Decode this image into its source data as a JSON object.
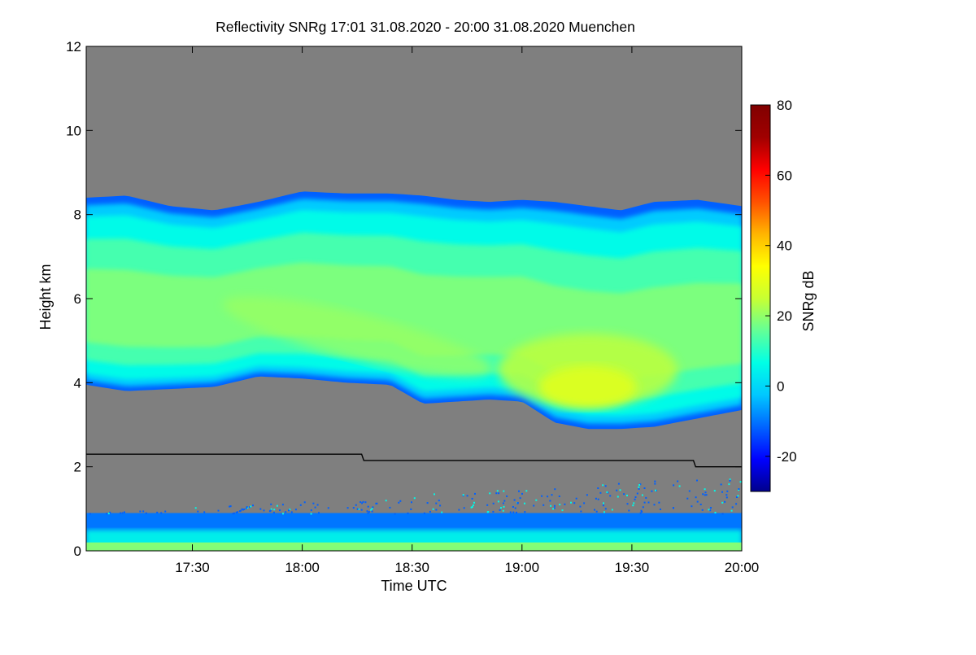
{
  "chart_data": {
    "type": "heatmap",
    "title": "Reflectivity SNRg   17:01 31.08.2020 - 20:00 31.08.2020 Muenchen",
    "xlabel": "Time UTC",
    "ylabel": "Height km",
    "x_range_hours": [
      17.017,
      20.0
    ],
    "x_ticks": [
      {
        "value": 17.5,
        "label": "17:30"
      },
      {
        "value": 18.0,
        "label": "18:00"
      },
      {
        "value": 18.5,
        "label": "18:30"
      },
      {
        "value": 19.0,
        "label": "19:00"
      },
      {
        "value": 19.5,
        "label": "19:30"
      },
      {
        "value": 20.0,
        "label": "20:00"
      }
    ],
    "y_range_km": [
      0,
      12
    ],
    "y_ticks": [
      {
        "value": 0,
        "label": "0"
      },
      {
        "value": 2,
        "label": "2"
      },
      {
        "value": 4,
        "label": "4"
      },
      {
        "value": 6,
        "label": "6"
      },
      {
        "value": 8,
        "label": "8"
      },
      {
        "value": 10,
        "label": "10"
      },
      {
        "value": 12,
        "label": "12"
      }
    ],
    "colorbar": {
      "label": "SNRg dB",
      "range_db": [
        -30,
        80
      ],
      "ticks": [
        {
          "value": -20,
          "label": "-20"
        },
        {
          "value": 0,
          "label": "0"
        },
        {
          "value": 20,
          "label": "20"
        },
        {
          "value": 40,
          "label": "40"
        },
        {
          "value": 60,
          "label": "60"
        },
        {
          "value": 80,
          "label": "80"
        }
      ],
      "colors": [
        "#00008c",
        "#0000ff",
        "#0064ff",
        "#00c8ff",
        "#00ffe6",
        "#64ff96",
        "#c8ff32",
        "#ffff00",
        "#ffb400",
        "#ff5000",
        "#ff0000",
        "#a00000",
        "#800000"
      ]
    },
    "background_no_signal_color": "#7f7f7f",
    "cloud_layer": {
      "description_series": "approximate cloud top and base heights (km) vs time (h)",
      "time_h": [
        17.017,
        17.2,
        17.4,
        17.6,
        17.8,
        18.0,
        18.2,
        18.4,
        18.55,
        18.7,
        18.85,
        19.0,
        19.15,
        19.3,
        19.45,
        19.6,
        19.8,
        20.0
      ],
      "top_km": [
        8.4,
        8.45,
        8.2,
        8.1,
        8.3,
        8.55,
        8.5,
        8.5,
        8.45,
        8.35,
        8.3,
        8.35,
        8.3,
        8.2,
        8.1,
        8.3,
        8.35,
        8.2
      ],
      "base_km": [
        3.95,
        3.8,
        3.85,
        3.9,
        4.15,
        4.1,
        4.0,
        3.95,
        3.5,
        3.55,
        3.6,
        3.55,
        3.05,
        2.9,
        2.9,
        2.95,
        3.15,
        3.35
      ],
      "max_snr_region": {
        "time_h": 19.3,
        "height_km": 3.9,
        "snr_db": 28
      },
      "typical_snr_db": 15
    },
    "boundary_layer_line": {
      "time_h": [
        17.017,
        18.27,
        18.28,
        19.78,
        19.79,
        20.0
      ],
      "height_km": [
        2.3,
        2.3,
        2.15,
        2.15,
        2.0,
        2.0
      ],
      "color": "#000000"
    },
    "lower_clutter": {
      "height_km_range": [
        0,
        0.9
      ],
      "snr_db_range": [
        -10,
        25
      ]
    }
  }
}
